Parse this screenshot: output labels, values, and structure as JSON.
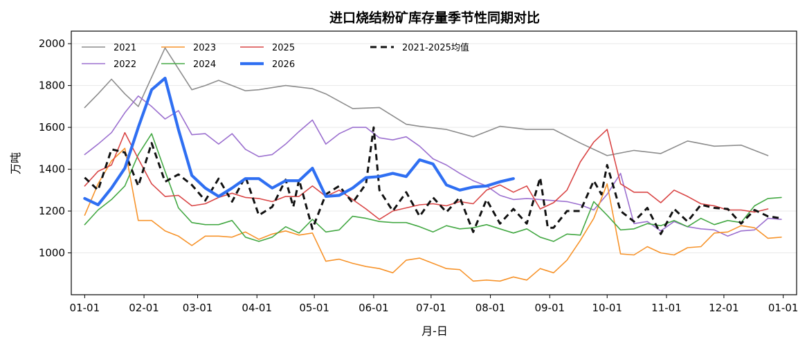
{
  "chart_data": {
    "type": "line",
    "title": "进口烧结粉矿库存量季节性同期对比",
    "xlabel": "月-日",
    "ylabel": "万吨",
    "x_ticks": [
      "01-01",
      "02-01",
      "03-01",
      "04-01",
      "05-01",
      "06-01",
      "07-01",
      "08-01",
      "09-01",
      "10-01",
      "11-01",
      "12-01",
      "01-01"
    ],
    "x_range_days": [
      -7,
      372
    ],
    "ylim": [
      800,
      2060
    ],
    "y_ticks": [
      1000,
      1200,
      1400,
      1600,
      1800,
      2000
    ],
    "grid": "horizontal",
    "legend_placement": "top-left",
    "series": [
      {
        "name": "2021",
        "color": "#8c8c8c",
        "width": 1.6,
        "dash": "",
        "x": [
          0,
          7,
          14,
          21,
          28,
          35,
          42,
          49,
          56,
          63,
          70,
          77,
          84,
          91,
          105,
          119,
          126,
          140,
          154,
          168,
          175,
          189,
          203,
          217,
          231,
          245,
          259,
          273,
          287,
          301,
          315,
          329,
          343,
          357
        ],
        "y": [
          1695,
          1760,
          1830,
          1760,
          1700,
          1840,
          1980,
          1880,
          1780,
          1800,
          1825,
          1800,
          1775,
          1780,
          1800,
          1785,
          1760,
          1690,
          1695,
          1615,
          1605,
          1590,
          1555,
          1605,
          1590,
          1590,
          1525,
          1465,
          1490,
          1475,
          1535,
          1510,
          1515,
          1465
        ]
      },
      {
        "name": "2022",
        "color": "#9b6fcf",
        "width": 1.6,
        "dash": "",
        "x": [
          0,
          7,
          14,
          21,
          28,
          35,
          42,
          49,
          56,
          63,
          70,
          77,
          84,
          91,
          98,
          105,
          112,
          119,
          126,
          133,
          140,
          147,
          154,
          161,
          168,
          175,
          182,
          189,
          196,
          203,
          210,
          217,
          224,
          231,
          238,
          245,
          252,
          259,
          266,
          273,
          280,
          287,
          294,
          301,
          308,
          315,
          322,
          329,
          336,
          343,
          350,
          357,
          364
        ],
        "y": [
          1470,
          1520,
          1575,
          1670,
          1750,
          1700,
          1640,
          1680,
          1565,
          1570,
          1520,
          1570,
          1495,
          1460,
          1470,
          1520,
          1580,
          1635,
          1520,
          1570,
          1600,
          1600,
          1550,
          1540,
          1555,
          1510,
          1450,
          1420,
          1380,
          1345,
          1320,
          1275,
          1255,
          1260,
          1255,
          1250,
          1245,
          1230,
          1205,
          1280,
          1380,
          1140,
          1150,
          1105,
          1150,
          1125,
          1115,
          1110,
          1080,
          1105,
          1110,
          1165,
          1160
        ]
      },
      {
        "name": "2023",
        "color": "#f7932a",
        "width": 1.6,
        "dash": "",
        "x": [
          0,
          7,
          14,
          21,
          28,
          35,
          42,
          49,
          56,
          63,
          70,
          77,
          84,
          91,
          98,
          105,
          112,
          119,
          126,
          133,
          140,
          147,
          154,
          161,
          168,
          175,
          182,
          189,
          196,
          203,
          210,
          217,
          224,
          231,
          238,
          245,
          252,
          259,
          266,
          273,
          280,
          287,
          294,
          301,
          308,
          315,
          322,
          329,
          336,
          343,
          350,
          357,
          364
        ],
        "y": [
          1180,
          1330,
          1440,
          1500,
          1155,
          1155,
          1105,
          1080,
          1035,
          1080,
          1080,
          1075,
          1100,
          1065,
          1090,
          1105,
          1085,
          1095,
          960,
          970,
          950,
          935,
          925,
          905,
          965,
          975,
          950,
          925,
          920,
          865,
          870,
          865,
          885,
          870,
          925,
          905,
          965,
          1060,
          1165,
          1330,
          995,
          990,
          1030,
          1000,
          990,
          1025,
          1030,
          1095,
          1100,
          1130,
          1120,
          1070,
          1075
        ]
      },
      {
        "name": "2024",
        "color": "#43a843",
        "width": 1.6,
        "dash": "",
        "x": [
          0,
          7,
          14,
          21,
          28,
          35,
          42,
          49,
          56,
          63,
          70,
          77,
          84,
          91,
          98,
          105,
          112,
          119,
          126,
          133,
          140,
          147,
          154,
          161,
          168,
          175,
          182,
          189,
          196,
          203,
          210,
          217,
          224,
          231,
          238,
          245,
          252,
          259,
          266,
          273,
          280,
          287,
          294,
          301,
          308,
          315,
          322,
          329,
          336,
          343,
          350,
          357,
          364
        ],
        "y": [
          1135,
          1205,
          1255,
          1320,
          1470,
          1570,
          1390,
          1215,
          1145,
          1135,
          1135,
          1155,
          1075,
          1055,
          1075,
          1125,
          1095,
          1160,
          1100,
          1110,
          1175,
          1165,
          1150,
          1145,
          1145,
          1125,
          1100,
          1130,
          1115,
          1120,
          1135,
          1115,
          1095,
          1115,
          1075,
          1055,
          1090,
          1085,
          1245,
          1180,
          1110,
          1115,
          1140,
          1130,
          1155,
          1125,
          1165,
          1135,
          1155,
          1145,
          1225,
          1260,
          1265
        ]
      },
      {
        "name": "2025",
        "color": "#d94545",
        "width": 1.6,
        "dash": "",
        "x": [
          0,
          7,
          14,
          21,
          28,
          35,
          42,
          49,
          56,
          63,
          70,
          77,
          84,
          91,
          98,
          105,
          112,
          119,
          126,
          133,
          140,
          147,
          154,
          161,
          168,
          175,
          182,
          189,
          196,
          203,
          210,
          217,
          224,
          231,
          238,
          245,
          252,
          259,
          266,
          273,
          280,
          287,
          294,
          301,
          308,
          315,
          322,
          329,
          336,
          343,
          350,
          357
        ],
        "y": [
          1320,
          1390,
          1420,
          1575,
          1450,
          1330,
          1270,
          1275,
          1225,
          1235,
          1265,
          1285,
          1265,
          1260,
          1245,
          1270,
          1270,
          1320,
          1270,
          1300,
          1255,
          1210,
          1160,
          1200,
          1215,
          1230,
          1235,
          1225,
          1245,
          1235,
          1300,
          1325,
          1290,
          1320,
          1210,
          1240,
          1300,
          1435,
          1530,
          1590,
          1330,
          1290,
          1290,
          1240,
          1300,
          1270,
          1235,
          1225,
          1205,
          1205,
          1195,
          1210
        ]
      },
      {
        "name": "2026",
        "color": "#2f6ff2",
        "width": 4.2,
        "dash": "",
        "x": [
          0,
          7,
          14,
          21,
          28,
          35,
          42,
          49,
          56,
          63,
          70,
          77,
          84,
          91,
          98,
          105,
          112,
          119,
          126,
          133,
          140,
          147,
          154,
          161,
          168,
          175,
          182,
          189,
          196,
          203,
          210,
          217,
          224
        ],
        "y": [
          1260,
          1230,
          1310,
          1405,
          1600,
          1780,
          1835,
          1590,
          1370,
          1310,
          1270,
          1310,
          1355,
          1355,
          1310,
          1345,
          1345,
          1405,
          1270,
          1275,
          1310,
          1360,
          1365,
          1380,
          1365,
          1445,
          1425,
          1325,
          1300,
          1315,
          1320,
          1340,
          1355
        ]
      },
      {
        "name": "2021-2025均值",
        "color": "#111111",
        "width": 3,
        "dash": "9,6",
        "x": [
          0,
          7,
          14,
          21,
          28,
          35,
          42,
          49,
          56,
          63,
          70,
          77,
          84,
          91,
          98,
          105,
          109,
          112,
          119,
          126,
          133,
          140,
          147,
          151,
          154,
          161,
          168,
          175,
          182,
          189,
          196,
          203,
          210,
          217,
          224,
          231,
          238,
          242,
          245,
          252,
          259,
          266,
          270,
          273,
          280,
          287,
          294,
          301,
          308,
          315,
          322,
          329,
          336,
          343,
          350,
          357,
          364
        ],
        "y": [
          1360,
          1300,
          1495,
          1480,
          1320,
          1525,
          1340,
          1375,
          1325,
          1250,
          1355,
          1245,
          1365,
          1180,
          1220,
          1350,
          1220,
          1350,
          1115,
          1280,
          1320,
          1240,
          1330,
          1600,
          1300,
          1200,
          1290,
          1175,
          1265,
          1195,
          1265,
          1100,
          1255,
          1140,
          1210,
          1140,
          1360,
          1120,
          1120,
          1200,
          1200,
          1345,
          1280,
          1420,
          1200,
          1150,
          1215,
          1090,
          1210,
          1150,
          1230,
          1215,
          1210,
          1140,
          1205,
          1175,
          1165
        ]
      }
    ]
  }
}
